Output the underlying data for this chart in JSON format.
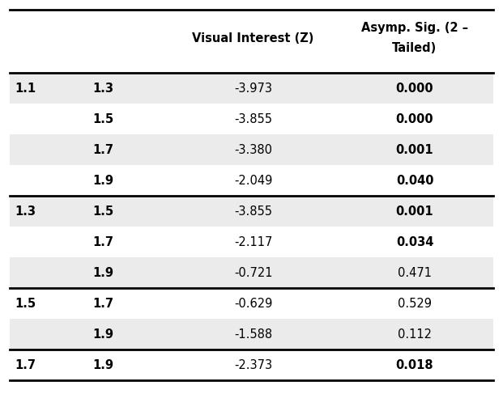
{
  "col3_header": "Visual Interest (Z)",
  "col4_header": "Asymp. Sig. (2 –\nTailed)",
  "rows": [
    {
      "col1": "1.1",
      "col2": "1.3",
      "col3": "-3.973",
      "col4": "0.000",
      "col4_bold": true,
      "group_start": true,
      "shaded": true
    },
    {
      "col1": "",
      "col2": "1.5",
      "col3": "-3.855",
      "col4": "0.000",
      "col4_bold": true,
      "group_start": false,
      "shaded": false
    },
    {
      "col1": "",
      "col2": "1.7",
      "col3": "-3.380",
      "col4": "0.001",
      "col4_bold": true,
      "group_start": false,
      "shaded": true
    },
    {
      "col1": "",
      "col2": "1.9",
      "col3": "-2.049",
      "col4": "0.040",
      "col4_bold": true,
      "group_start": false,
      "shaded": false
    },
    {
      "col1": "1.3",
      "col2": "1.5",
      "col3": "-3.855",
      "col4": "0.001",
      "col4_bold": true,
      "group_start": true,
      "shaded": true
    },
    {
      "col1": "",
      "col2": "1.7",
      "col3": "-2.117",
      "col4": "0.034",
      "col4_bold": true,
      "group_start": false,
      "shaded": false
    },
    {
      "col1": "",
      "col2": "1.9",
      "col3": "-0.721",
      "col4": "0.471",
      "col4_bold": false,
      "group_start": false,
      "shaded": true
    },
    {
      "col1": "1.5",
      "col2": "1.7",
      "col3": "-0.629",
      "col4": "0.529",
      "col4_bold": false,
      "group_start": true,
      "shaded": false
    },
    {
      "col1": "",
      "col2": "1.9",
      "col3": "-1.588",
      "col4": "0.112",
      "col4_bold": false,
      "group_start": false,
      "shaded": true
    },
    {
      "col1": "1.7",
      "col2": "1.9",
      "col3": "-2.373",
      "col4": "0.018",
      "col4_bold": true,
      "group_start": true,
      "shaded": false
    }
  ],
  "shaded_color": "#ebebeb",
  "unshaded_color": "#ffffff",
  "line_color": "#000000",
  "font_size": 10.5,
  "header_font_size": 10.5
}
